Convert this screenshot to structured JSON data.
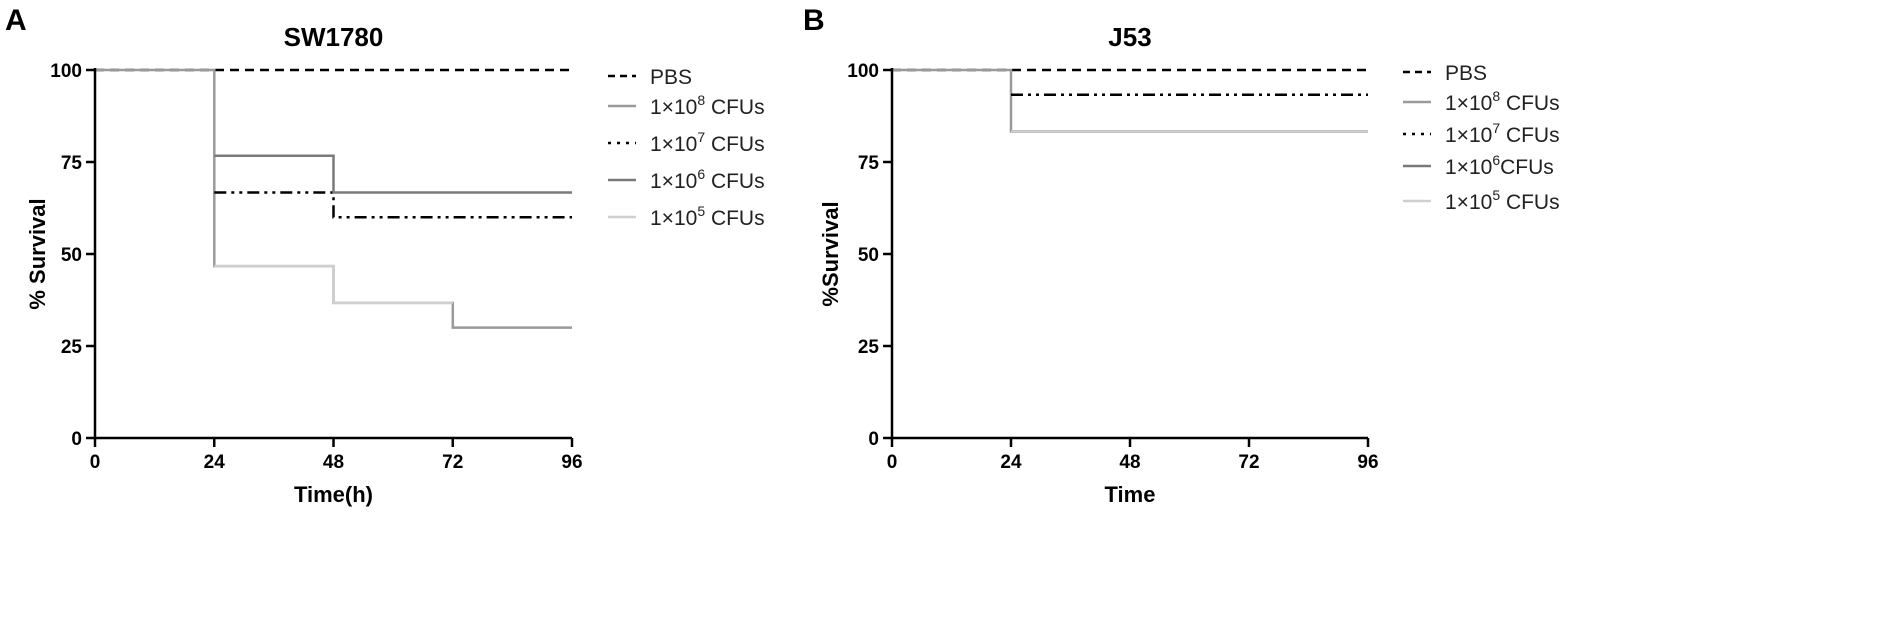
{
  "chart_data": [
    {
      "type": "line",
      "step": true,
      "panel_label": "A",
      "title": "SW1780",
      "xlabel": "Time(h)",
      "ylabel": "% Survival",
      "xlim": [
        0,
        96
      ],
      "ylim": [
        0,
        100
      ],
      "xticks": [
        "0",
        "24",
        "48",
        "72",
        "96"
      ],
      "yticks": [
        "0",
        "25",
        "50",
        "75",
        "100"
      ],
      "legend_position": "right",
      "series": [
        {
          "name": "PBS",
          "legend": {
            "pre": "PBS",
            "sup": "",
            "post": ""
          },
          "dash": "dashed",
          "color": "#000000",
          "points": [
            [
              0,
              100
            ],
            [
              96,
              100
            ]
          ]
        },
        {
          "name": "1×10^8 CFUs",
          "legend": {
            "pre": "1×10",
            "sup": "8",
            "post": " CFUs"
          },
          "dash": "solid",
          "color": "#9a9a9a",
          "points": [
            [
              0,
              100
            ],
            [
              24,
              100
            ],
            [
              24,
              46.7
            ],
            [
              48,
              46.7
            ],
            [
              48,
              36.7
            ],
            [
              72,
              36.7
            ],
            [
              72,
              30
            ],
            [
              96,
              30
            ]
          ]
        },
        {
          "name": "1×10^7 CFUs",
          "legend": {
            "pre": "1×10",
            "sup": "7",
            "post": " CFUs"
          },
          "dash": "dashdotdot",
          "color": "#000000",
          "points": [
            [
              24,
              66.7
            ],
            [
              48,
              66.7
            ],
            [
              48,
              60
            ],
            [
              96,
              60
            ]
          ]
        },
        {
          "name": "1×10^6 CFUs",
          "legend": {
            "pre": "1×10",
            "sup": "6",
            "post": " CFUs"
          },
          "dash": "solid",
          "color": "#7a7a7a",
          "points": [
            [
              24,
              76.7
            ],
            [
              48,
              76.7
            ],
            [
              48,
              66.7
            ],
            [
              96,
              66.7
            ]
          ]
        },
        {
          "name": "1×10^5 CFUs",
          "legend": {
            "pre": "1×10",
            "sup": "5",
            "post": " CFUs"
          },
          "dash": "solid",
          "color": "#cfcfcf",
          "points": [
            [
              24,
              46.7
            ],
            [
              48,
              46.7
            ],
            [
              48,
              36.7
            ],
            [
              72,
              36.7
            ]
          ]
        }
      ]
    },
    {
      "type": "line",
      "step": true,
      "panel_label": "B",
      "title": "J53",
      "xlabel": "Time",
      "ylabel": "%Survival",
      "xlim": [
        0,
        96
      ],
      "ylim": [
        0,
        100
      ],
      "xticks": [
        "0",
        "24",
        "48",
        "72",
        "96"
      ],
      "yticks": [
        "0",
        "25",
        "50",
        "75",
        "100"
      ],
      "legend_position": "right",
      "series": [
        {
          "name": "PBS",
          "legend": {
            "pre": "PBS",
            "sup": "",
            "post": ""
          },
          "dash": "dashed",
          "color": "#000000",
          "points": [
            [
              0,
              100
            ],
            [
              96,
              100
            ]
          ]
        },
        {
          "name": "1×10^8 CFUs",
          "legend": {
            "pre": "1×10",
            "sup": "8",
            "post": " CFUs"
          },
          "dash": "solid",
          "color": "#9a9a9a",
          "points": [
            [
              0,
              100
            ],
            [
              24,
              100
            ],
            [
              24,
              83.3
            ],
            [
              96,
              83.3
            ]
          ]
        },
        {
          "name": "1×10^7 CFUs",
          "legend": {
            "pre": "1×10",
            "sup": "7",
            "post": " CFUs"
          },
          "dash": "dashdotdot",
          "color": "#000000",
          "points": [
            [
              24,
              93.3
            ],
            [
              96,
              93.3
            ]
          ]
        },
        {
          "name": "1×10^6CFUs",
          "legend": {
            "pre": "1×10",
            "sup": "6",
            "post": "CFUs"
          },
          "dash": "solid",
          "color": "#7a7a7a",
          "points": [
            [
              24,
              83.3
            ],
            [
              96,
              83.3
            ]
          ]
        },
        {
          "name": "1×10^5 CFUs",
          "legend": {
            "pre": "1×10",
            "sup": "5",
            "post": " CFUs"
          },
          "dash": "solid",
          "color": "#cfcfcf",
          "points": [
            [
              24,
              83.3
            ],
            [
              96,
              83.3
            ]
          ]
        }
      ]
    }
  ]
}
